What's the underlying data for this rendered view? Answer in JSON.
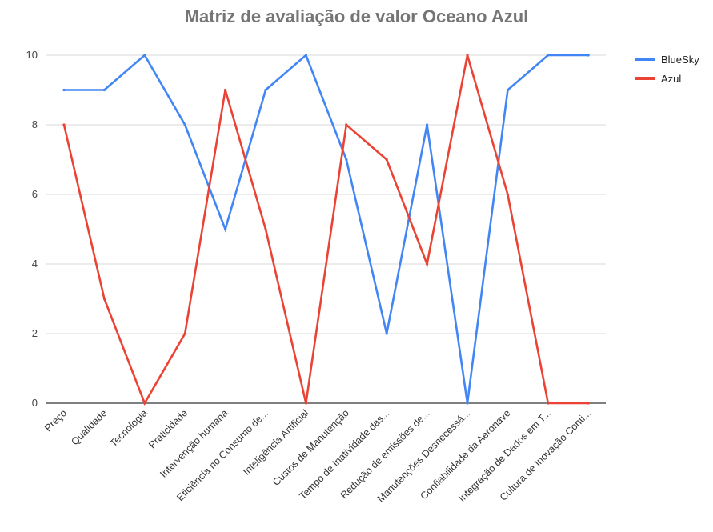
{
  "chart_data": {
    "type": "line",
    "title": "Matriz de avaliação de valor Oceano Azul",
    "xlabel": "",
    "ylabel": "",
    "categories": [
      "Preço",
      "Qualidade",
      "Tecnologia",
      "Praticidade",
      "Intervenção humana",
      "Eficiência no Consumo de...",
      "Inteligência Artificial",
      "Custos de Manutenção",
      "Tempo de Inatividade das...",
      "Redução de emissões de...",
      "Manutenções Desnecessá...",
      "Confiabilidade da Aeronave",
      "Integração de Dados em T...",
      "Cultura de Inovação Conti..."
    ],
    "series": [
      {
        "name": "BlueSky",
        "color": "#4285f4",
        "values": [
          9,
          9,
          10,
          8,
          5,
          9,
          10,
          7,
          2,
          8,
          0,
          9,
          10,
          10
        ]
      },
      {
        "name": "Azul",
        "color": "#ea4335",
        "values": [
          8,
          3,
          0,
          2,
          9,
          5,
          0,
          8,
          7,
          4,
          10,
          6,
          0,
          0
        ]
      }
    ],
    "ylim": [
      0,
      10
    ],
    "yticks": [
      0,
      2,
      4,
      6,
      8,
      10
    ],
    "grid": true,
    "legend_position": "right"
  }
}
